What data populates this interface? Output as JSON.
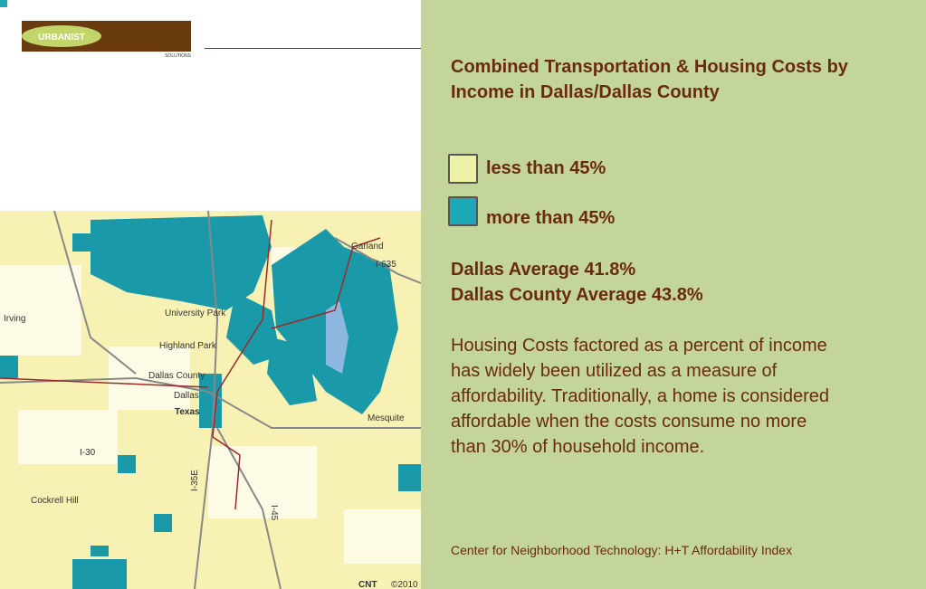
{
  "logo": {
    "name": "URBANIST",
    "tagline": "SOLUTIONS"
  },
  "title": "Combined Transportation & Housing Costs by Income in Dallas/Dallas County",
  "legend": [
    {
      "label": "less than 45%",
      "color": "#eef2a6"
    },
    {
      "label": "more than 45%",
      "color": "#1ea7b5"
    }
  ],
  "averages": [
    "Dallas Average 41.8%",
    "Dallas County Average 43.8%"
  ],
  "body": "Housing Costs factored as a percent of income has widely been utilized as a measure of affordability. Traditionally, a home is considered affordable when the costs consume no more than 30% of household income.",
  "source": "Center for Neighborhood Technology: H+T Affordability Index",
  "map": {
    "labels": [
      "Garland",
      "I-635",
      "Irving",
      "University Park",
      "Highland Park",
      "Dallas County",
      "Dallas",
      "Texas",
      "Mesquite",
      "I-30",
      "I-35E",
      "I-45",
      "Cockrell Hill"
    ],
    "credit": "CNT",
    "year": "©2010"
  }
}
